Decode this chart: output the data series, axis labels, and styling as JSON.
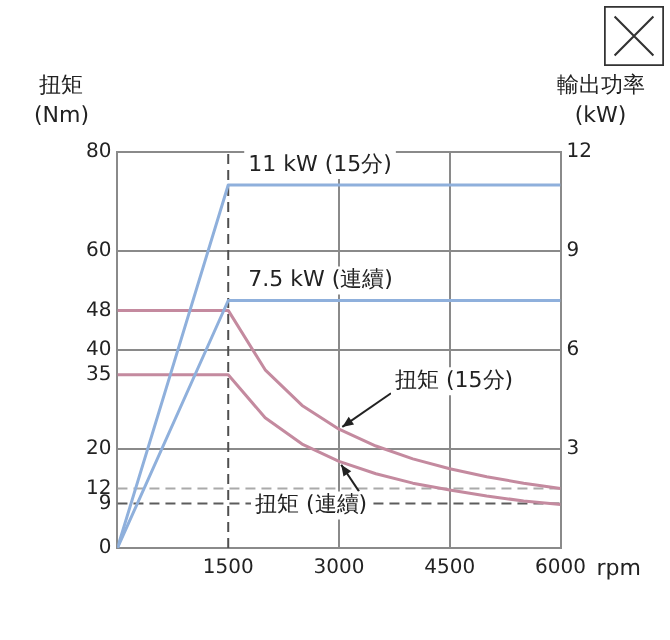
{
  "chart_data": {
    "type": "line",
    "ylabel": "扭矩\n(Nm)",
    "y2label": "輸出功率\n(kW)",
    "xlabel": "rpm",
    "xlim": [
      0,
      6000
    ],
    "xticks": [
      1500,
      3000,
      4500,
      6000
    ],
    "ylim": [
      0,
      80
    ],
    "yticks": [
      0,
      9,
      12,
      20,
      35,
      40,
      48,
      60,
      80
    ],
    "y2lim": [
      0,
      12
    ],
    "y2ticks": [
      3,
      6,
      9,
      12
    ],
    "grid": true,
    "legend": false,
    "marker": "none",
    "line_style": "solid",
    "series": [
      {
        "name": "11 kW (15分)",
        "color": "#8fb0dc",
        "axis": "y2",
        "x": [
          0,
          1500,
          6000
        ],
        "values": [
          0,
          11,
          11
        ]
      },
      {
        "name": "7.5 kW (連續)",
        "color": "#8fb0dc",
        "axis": "y2",
        "x": [
          0,
          1500,
          6000
        ],
        "values": [
          0,
          7.5,
          7.5
        ]
      },
      {
        "name": "扭矩 (15分)",
        "color": "#c48a9f",
        "x": [
          0,
          1500,
          2000,
          2500,
          3000,
          3500,
          4000,
          4500,
          5000,
          5500,
          6000
        ],
        "values": [
          48,
          48,
          36,
          28.8,
          24,
          20.6,
          18,
          16,
          14.4,
          13.1,
          12
        ]
      },
      {
        "name": "扭矩 (連續)",
        "color": "#c48a9f",
        "x": [
          0,
          1500,
          2000,
          2500,
          3000,
          3500,
          4000,
          4500,
          5000,
          5500,
          6000
        ],
        "values": [
          35,
          35,
          26.3,
          21,
          17.5,
          15,
          13.1,
          11.7,
          10.5,
          9.5,
          8.8
        ]
      }
    ],
    "ref_lines": [
      {
        "axis": "x",
        "value": 1500,
        "color": "#4f4f4f",
        "line_style": "dashed"
      },
      {
        "axis": "y",
        "value": 12,
        "color": "#aaaaaa",
        "line_style": "dashed"
      },
      {
        "axis": "y",
        "value": 9,
        "color": "#5c5c5c",
        "line_style": "dashed"
      }
    ]
  }
}
